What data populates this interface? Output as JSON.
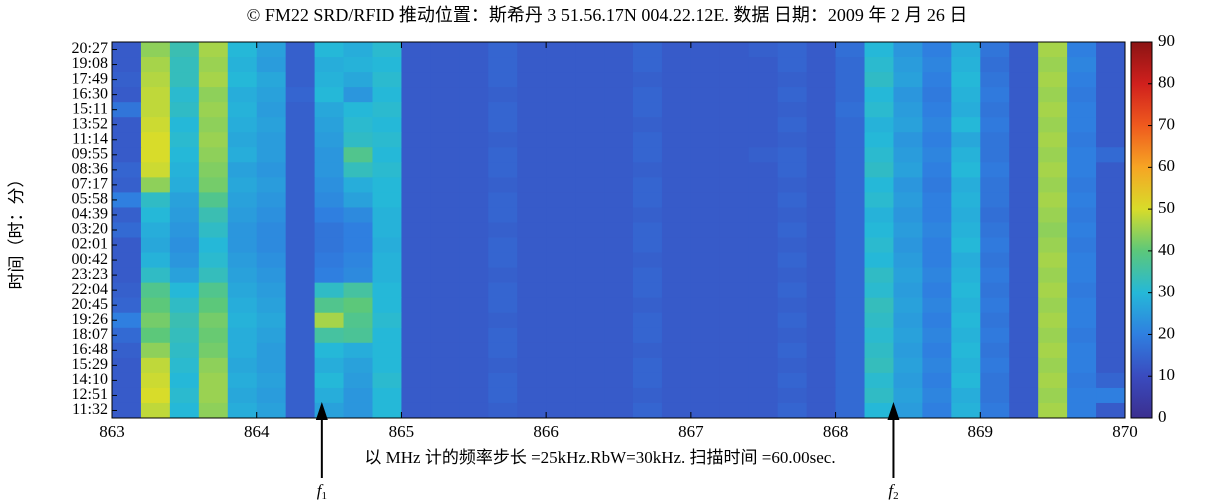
{
  "chart_data": {
    "type": "heatmap",
    "title": "© FM22 SRD/RFID 推动位置：斯希丹 3 51.56.17N 004.22.12E. 数据 日期：2009 年 2 月 26 日",
    "xlabel": "以 MHz 计的频率步长 =25kHz.RbW=30kHz. 扫描时间 =60.00sec.",
    "ylabel": "时间（时：分）",
    "xlim": [
      863,
      870
    ],
    "xticks": [
      863,
      864,
      865,
      866,
      867,
      868,
      869,
      870
    ],
    "x": [
      863.1,
      863.3,
      863.5,
      863.7,
      863.9,
      864.1,
      864.3,
      864.5,
      864.7,
      864.9,
      865.1,
      865.3,
      865.5,
      865.7,
      865.9,
      866.1,
      866.3,
      866.5,
      866.7,
      866.9,
      867.1,
      867.3,
      867.5,
      867.7,
      867.9,
      868.1,
      868.3,
      868.5,
      868.7,
      868.9,
      869.1,
      869.3,
      869.5,
      869.7,
      869.9
    ],
    "y": [
      "20:27",
      "19:08",
      "17:49",
      "16:30",
      "15:11",
      "13:52",
      "11:14",
      "09:55",
      "08:36",
      "07:17",
      "05:58",
      "04:39",
      "03:20",
      "02:01",
      "00:42",
      "23:23",
      "22:04",
      "20:45",
      "19:26",
      "18:07",
      "16:48",
      "15:29",
      "14:10",
      "12:51",
      "11:32"
    ],
    "z": [
      [
        13,
        44,
        34,
        46,
        30,
        26,
        14,
        30,
        28,
        31,
        13,
        13,
        13,
        15,
        13,
        13,
        13,
        13,
        15,
        13,
        13,
        13,
        14,
        15,
        13,
        17,
        30,
        24,
        20,
        28,
        18,
        13,
        46,
        20,
        13
      ],
      [
        13,
        46,
        33,
        45,
        29,
        25,
        14,
        28,
        29,
        30,
        13,
        13,
        13,
        15,
        13,
        13,
        13,
        13,
        15,
        13,
        13,
        13,
        13,
        15,
        13,
        16,
        31,
        25,
        21,
        29,
        17,
        13,
        45,
        21,
        13
      ],
      [
        14,
        47,
        33,
        46,
        30,
        27,
        14,
        29,
        27,
        31,
        13,
        13,
        13,
        15,
        13,
        13,
        13,
        13,
        14,
        13,
        13,
        13,
        13,
        14,
        13,
        16,
        32,
        26,
        20,
        30,
        18,
        13,
        46,
        20,
        13
      ],
      [
        13,
        48,
        31,
        44,
        28,
        26,
        15,
        30,
        24,
        30,
        13,
        13,
        13,
        14,
        13,
        13,
        13,
        13,
        15,
        13,
        13,
        13,
        13,
        15,
        13,
        16,
        30,
        24,
        19,
        29,
        19,
        13,
        45,
        19,
        13
      ],
      [
        18,
        48,
        32,
        45,
        29,
        25,
        14,
        27,
        30,
        31,
        13,
        13,
        13,
        15,
        13,
        13,
        13,
        13,
        15,
        13,
        13,
        13,
        13,
        14,
        13,
        17,
        31,
        25,
        20,
        28,
        18,
        13,
        46,
        20,
        13
      ],
      [
        13,
        49,
        30,
        44,
        28,
        26,
        14,
        26,
        31,
        30,
        13,
        13,
        13,
        15,
        13,
        13,
        13,
        13,
        14,
        13,
        13,
        13,
        13,
        15,
        13,
        16,
        29,
        26,
        21,
        30,
        19,
        13,
        45,
        20,
        13
      ],
      [
        13,
        50,
        31,
        45,
        27,
        25,
        14,
        25,
        32,
        31,
        13,
        13,
        13,
        14,
        13,
        13,
        13,
        13,
        15,
        13,
        13,
        13,
        13,
        14,
        13,
        16,
        30,
        24,
        20,
        27,
        18,
        13,
        46,
        19,
        13
      ],
      [
        13,
        50,
        30,
        44,
        28,
        25,
        14,
        24,
        38,
        30,
        13,
        13,
        13,
        15,
        13,
        13,
        13,
        13,
        15,
        13,
        13,
        13,
        14,
        15,
        13,
        16,
        31,
        25,
        21,
        29,
        18,
        13,
        45,
        20,
        16
      ],
      [
        15,
        49,
        29,
        43,
        26,
        24,
        14,
        24,
        33,
        31,
        13,
        13,
        13,
        15,
        13,
        13,
        13,
        13,
        14,
        13,
        13,
        13,
        13,
        15,
        13,
        16,
        32,
        26,
        20,
        30,
        19,
        13,
        46,
        20,
        13
      ],
      [
        14,
        44,
        28,
        42,
        27,
        25,
        14,
        23,
        28,
        30,
        13,
        13,
        13,
        14,
        13,
        13,
        13,
        13,
        15,
        13,
        13,
        13,
        13,
        14,
        13,
        16,
        30,
        24,
        19,
        28,
        18,
        13,
        45,
        19,
        13
      ],
      [
        20,
        32,
        26,
        38,
        26,
        24,
        14,
        22,
        26,
        30,
        13,
        13,
        13,
        15,
        13,
        13,
        13,
        13,
        15,
        13,
        13,
        13,
        13,
        15,
        13,
        16,
        31,
        25,
        20,
        29,
        18,
        13,
        46,
        20,
        13
      ],
      [
        14,
        30,
        25,
        34,
        25,
        23,
        14,
        20,
        22,
        29,
        13,
        13,
        13,
        15,
        13,
        13,
        13,
        13,
        14,
        13,
        13,
        13,
        13,
        14,
        13,
        16,
        29,
        24,
        20,
        28,
        17,
        13,
        45,
        19,
        13
      ],
      [
        16,
        28,
        24,
        32,
        24,
        22,
        14,
        18,
        20,
        29,
        13,
        13,
        13,
        14,
        13,
        13,
        13,
        13,
        15,
        13,
        13,
        13,
        13,
        15,
        13,
        16,
        30,
        25,
        21,
        29,
        18,
        13,
        44,
        20,
        13
      ],
      [
        13,
        27,
        23,
        30,
        24,
        22,
        14,
        18,
        20,
        28,
        13,
        13,
        13,
        15,
        13,
        13,
        13,
        13,
        15,
        13,
        13,
        13,
        13,
        14,
        13,
        16,
        31,
        24,
        20,
        30,
        19,
        13,
        45,
        19,
        13
      ],
      [
        13,
        29,
        24,
        31,
        25,
        23,
        14,
        19,
        21,
        29,
        13,
        13,
        13,
        15,
        13,
        13,
        13,
        13,
        14,
        13,
        13,
        13,
        13,
        15,
        13,
        16,
        30,
        25,
        20,
        28,
        18,
        13,
        46,
        20,
        13
      ],
      [
        13,
        32,
        26,
        33,
        26,
        24,
        14,
        20,
        22,
        29,
        13,
        13,
        13,
        14,
        13,
        13,
        13,
        13,
        15,
        13,
        13,
        13,
        13,
        14,
        13,
        16,
        32,
        26,
        21,
        29,
        19,
        13,
        45,
        20,
        13
      ],
      [
        14,
        38,
        30,
        38,
        27,
        25,
        14,
        32,
        36,
        30,
        13,
        13,
        13,
        15,
        13,
        13,
        13,
        13,
        15,
        13,
        13,
        13,
        13,
        15,
        13,
        16,
        31,
        25,
        20,
        30,
        18,
        13,
        46,
        19,
        13
      ],
      [
        15,
        40,
        32,
        40,
        28,
        26,
        14,
        38,
        40,
        30,
        13,
        13,
        13,
        15,
        13,
        13,
        13,
        13,
        14,
        13,
        13,
        13,
        13,
        14,
        13,
        16,
        33,
        26,
        21,
        29,
        19,
        13,
        45,
        20,
        13
      ],
      [
        20,
        42,
        34,
        42,
        29,
        27,
        14,
        46,
        38,
        31,
        13,
        13,
        13,
        14,
        13,
        13,
        13,
        13,
        15,
        13,
        13,
        13,
        13,
        15,
        13,
        16,
        32,
        25,
        20,
        30,
        18,
        13,
        46,
        20,
        13
      ],
      [
        16,
        40,
        33,
        41,
        28,
        26,
        14,
        36,
        37,
        30,
        13,
        13,
        13,
        15,
        13,
        13,
        13,
        13,
        15,
        13,
        13,
        13,
        13,
        14,
        13,
        16,
        31,
        26,
        21,
        29,
        19,
        13,
        45,
        19,
        13
      ],
      [
        14,
        44,
        32,
        42,
        28,
        25,
        14,
        30,
        28,
        30,
        13,
        13,
        13,
        15,
        13,
        13,
        13,
        13,
        14,
        13,
        13,
        13,
        13,
        15,
        13,
        16,
        32,
        25,
        20,
        30,
        18,
        13,
        46,
        20,
        13
      ],
      [
        13,
        48,
        31,
        44,
        27,
        25,
        14,
        28,
        26,
        30,
        13,
        13,
        13,
        14,
        13,
        13,
        13,
        13,
        15,
        13,
        13,
        13,
        13,
        14,
        13,
        16,
        33,
        26,
        21,
        29,
        19,
        13,
        45,
        20,
        13
      ],
      [
        13,
        49,
        30,
        45,
        28,
        26,
        14,
        30,
        25,
        31,
        13,
        13,
        13,
        15,
        13,
        13,
        13,
        13,
        15,
        13,
        13,
        13,
        13,
        15,
        13,
        16,
        31,
        25,
        20,
        30,
        18,
        13,
        46,
        19,
        15
      ],
      [
        13,
        50,
        31,
        45,
        27,
        25,
        14,
        28,
        24,
        30,
        13,
        13,
        13,
        15,
        13,
        13,
        13,
        13,
        14,
        13,
        13,
        13,
        13,
        14,
        13,
        16,
        32,
        26,
        21,
        28,
        18,
        13,
        45,
        20,
        20
      ],
      [
        13,
        48,
        30,
        44,
        28,
        26,
        14,
        26,
        24,
        30,
        13,
        13,
        13,
        14,
        13,
        13,
        13,
        13,
        15,
        13,
        13,
        13,
        13,
        15,
        13,
        16,
        30,
        25,
        20,
        29,
        19,
        13,
        46,
        20,
        13
      ]
    ],
    "clim": [
      0,
      90
    ],
    "cticks": [
      0,
      10,
      20,
      30,
      40,
      50,
      60,
      70,
      80,
      90
    ],
    "colormap": [
      "#3b2f8f",
      "#3a4bbf",
      "#2f7fe0",
      "#25b8d8",
      "#5cc87a",
      "#d8dc2a",
      "#f6a524",
      "#ef5a1e",
      "#d0201d",
      "#8b1414"
    ],
    "annotations": [
      {
        "text": "f",
        "sub": "1",
        "x": 864.45
      },
      {
        "text": "f",
        "sub": "2",
        "x": 868.4
      }
    ]
  }
}
